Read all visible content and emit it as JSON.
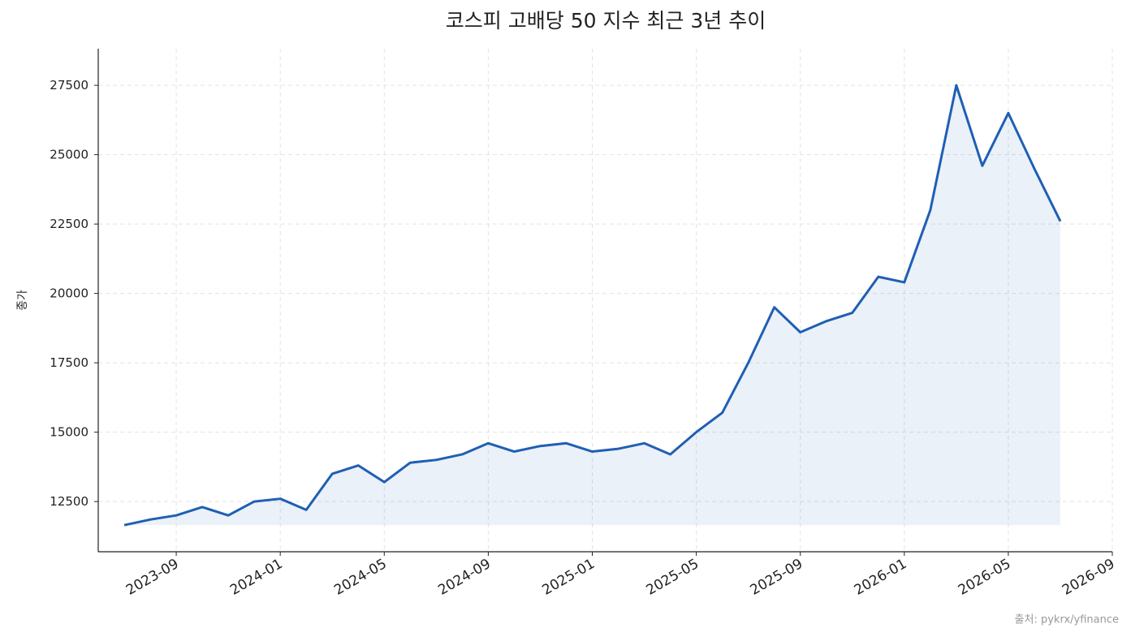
{
  "chart_data": {
    "type": "line",
    "title": "코스피 고배당 50 지수 최근 3년 추이",
    "y_label": "종가",
    "source": "출처: pykrx/yfinance",
    "x": [
      "2023-07",
      "2023-08",
      "2023-09",
      "2023-10",
      "2023-11",
      "2023-12",
      "2024-01",
      "2024-02",
      "2024-03",
      "2024-04",
      "2024-05",
      "2024-06",
      "2024-07",
      "2024-08",
      "2024-09",
      "2024-10",
      "2024-11",
      "2024-12",
      "2025-01",
      "2025-02",
      "2025-03",
      "2025-04",
      "2025-05",
      "2025-06",
      "2025-07",
      "2025-08",
      "2025-09",
      "2025-10",
      "2025-11",
      "2025-12",
      "2026-01",
      "2026-02",
      "2026-03",
      "2026-04",
      "2026-05",
      "2026-06",
      "2026-07"
    ],
    "series": [
      {
        "name": "종가",
        "color": "#1f5fb4",
        "values": [
          11650,
          11850,
          12000,
          12300,
          12000,
          12500,
          12600,
          12200,
          13500,
          13800,
          13200,
          13900,
          14000,
          14200,
          14600,
          14300,
          14500,
          14600,
          14300,
          14400,
          14600,
          14200,
          15000,
          15700,
          17500,
          19500,
          18600,
          19000,
          19300,
          20600,
          20400,
          23000,
          27500,
          24600,
          26500,
          24500,
          22600
        ]
      }
    ],
    "xlim": [
      "2023-06",
      "2026-09"
    ],
    "xticks": [
      "2023-09",
      "2024-01",
      "2024-05",
      "2024-09",
      "2025-01",
      "2025-05",
      "2025-09",
      "2026-01",
      "2026-05",
      "2026-09"
    ],
    "ylim": [
      10690,
      28820
    ],
    "yticks": [
      12500,
      15000,
      17500,
      20000,
      22500,
      25000,
      27500
    ],
    "grid": true
  }
}
